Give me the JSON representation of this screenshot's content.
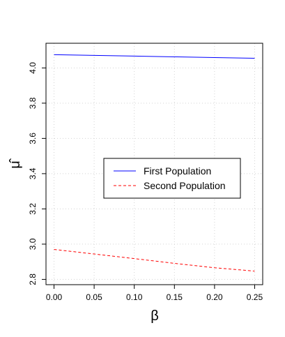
{
  "chart_data": {
    "type": "line",
    "xlabel": "β",
    "ylabel": "μ̂",
    "x": [
      0,
      0.05,
      0.1,
      0.15,
      0.2,
      0.25
    ],
    "series": [
      {
        "name": "First Population",
        "color": "#0000ff",
        "dash": "solid",
        "values": [
          4.075,
          4.071,
          4.067,
          4.063,
          4.059,
          4.055
        ]
      },
      {
        "name": "Second Population",
        "color": "#ff0000",
        "dash": "dashed",
        "values": [
          2.97,
          2.944,
          2.918,
          2.891,
          2.866,
          2.847
        ]
      }
    ],
    "xlim": [
      -0.01,
      0.26
    ],
    "ylim": [
      2.77,
      4.14
    ],
    "xticks": [
      {
        "value": 0,
        "label": "0.00"
      },
      {
        "value": 0.05,
        "label": "0.05"
      },
      {
        "value": 0.1,
        "label": "0.10"
      },
      {
        "value": 0.15,
        "label": "0.15"
      },
      {
        "value": 0.2,
        "label": "0.20"
      },
      {
        "value": 0.25,
        "label": "0.25"
      }
    ],
    "yticks": [
      2.8,
      {
        "value": 3,
        "label": "3.0"
      },
      3.2,
      3.4,
      3.6,
      3.8,
      {
        "value": 4,
        "label": "4.0"
      }
    ],
    "grid": true,
    "legend": "center-right"
  }
}
